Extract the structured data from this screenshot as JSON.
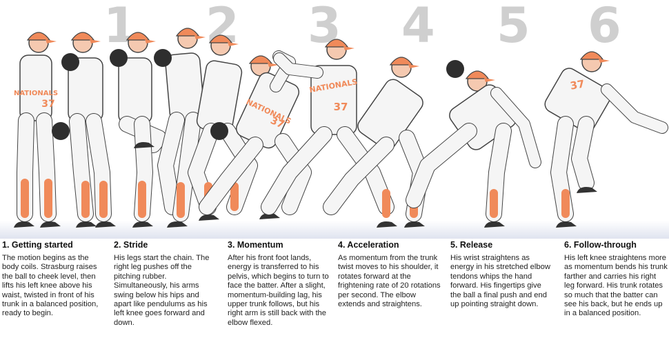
{
  "colors": {
    "jersey": "#f5f5f5",
    "outline": "#444444",
    "orange": "#f08a5a",
    "skin": "#f5c9b0",
    "cleat": "#333333",
    "big_number": "#cfcfcf"
  },
  "big_numbers": [
    "1",
    "2",
    "3",
    "4",
    "5",
    "6"
  ],
  "steps": [
    {
      "title": "1. Getting started",
      "text": "The motion begins as the body coils. Strasburg raises the ball to cheek level, then lifts his left knee above his waist, twisted in front of his trunk in a balanced position, ready to begin."
    },
    {
      "title": "2. Stride",
      "text": "His legs start the chain. The right leg pushes off the pitching rubber. Simultaneously, his arms swing below his hips and apart like pendulums as his left knee goes forward and down."
    },
    {
      "title": "3. Momentum",
      "text": "After his front foot lands, energy is transferred to his pelvis, which begins to turn to face the batter. After a slight, momentum-building lag, his upper trunk follows, but his right arm is still back with the elbow flexed."
    },
    {
      "title": "4. Acceleration",
      "text": "As momentum from the trunk twist moves to his shoulder, it rotates forward at the frightening rate of 20 rotations per second. The elbow extends and straightens."
    },
    {
      "title": "5. Release",
      "text": "His wrist straightens as energy in his stretched elbow tendons whips the hand forward. His fingertips give the ball a final push and end up pointing straight down."
    },
    {
      "title": "6. Follow-through",
      "text": "His left knee straightens more as momentum bends his trunk farther and carries his right leg forward. His trunk rotates so much that the batter can see his back, but he ends up in a balanced position."
    }
  ],
  "jersey_texts": [
    "NATIONALS",
    "37"
  ]
}
